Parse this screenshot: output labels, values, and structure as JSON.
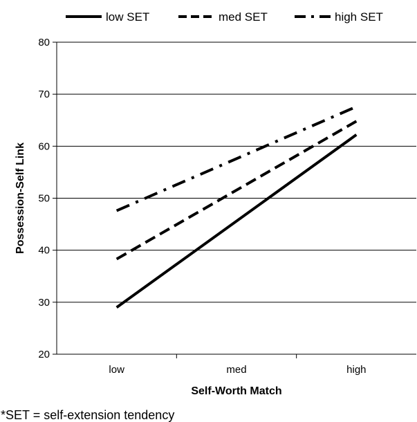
{
  "chart_data": {
    "type": "line",
    "categories": [
      "low",
      "med",
      "high"
    ],
    "series": [
      {
        "name": "low SET",
        "values": [
          29,
          45.6,
          62.2
        ],
        "style": "solid"
      },
      {
        "name": "med SET",
        "values": [
          38.3,
          51.6,
          64.8
        ],
        "style": "dashed"
      },
      {
        "name": "high SET",
        "values": [
          47.6,
          57.6,
          67.6
        ],
        "style": "dash-dot"
      }
    ],
    "xlabel": "Self-Worth Match",
    "ylabel": "Possession-Self Link",
    "ylim": [
      20,
      80
    ],
    "yticks": [
      20,
      30,
      40,
      50,
      60,
      70,
      80
    ],
    "grid": true,
    "legend_position": "top",
    "footnote": "*SET = self-extension tendency",
    "line_color": "#000000",
    "grid_color": "#000000"
  }
}
